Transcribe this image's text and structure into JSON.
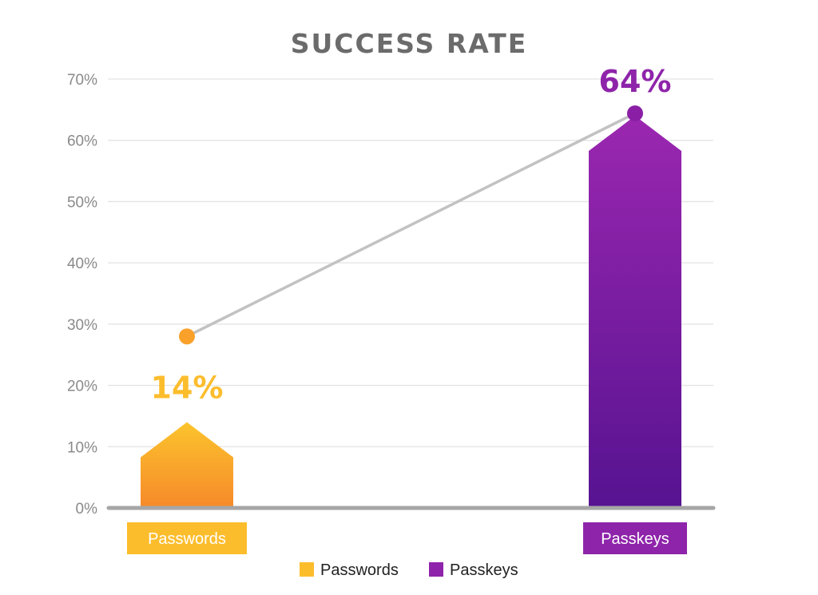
{
  "chart_data": {
    "type": "bar",
    "title": "SUCCESS RATE",
    "categories": [
      "Passwords",
      "Passkeys"
    ],
    "values": [
      14,
      64
    ],
    "data_labels": [
      "14%",
      "64%"
    ],
    "ylim": [
      0,
      70
    ],
    "yticks": [
      0,
      10,
      20,
      30,
      40,
      50,
      60,
      70
    ],
    "ytick_labels": [
      "0%",
      "10%",
      "20%",
      "30%",
      "40%",
      "50%",
      "60%",
      "70%"
    ],
    "grid": true,
    "legend": {
      "placement": "bottom-center",
      "entries": [
        "Passwords",
        "Passkeys"
      ]
    },
    "colors": {
      "passwords_top": "#fcc42d",
      "passwords_bottom": "#f6892a",
      "passkeys_top": "#9b27b0",
      "passkeys_bottom": "#561391",
      "passwords_label": "#fcbd2d",
      "passkeys_label": "#8e24aa",
      "passwords_point": "#f9a12a",
      "passkeys_point": "#8a1fa6",
      "connector": "#c2c2c2"
    }
  }
}
